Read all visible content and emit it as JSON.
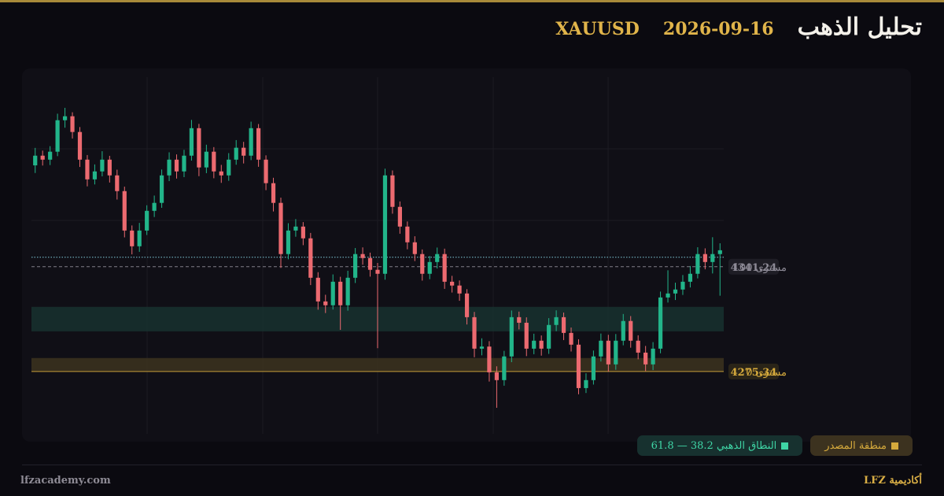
{
  "header": {
    "title": "تحليل الذهب",
    "date": "2026-09-16",
    "symbol": "XAUUSD"
  },
  "chart_data": {
    "type": "candlestick",
    "open": [
      4405.0,
      4411.1,
      4408.6,
      4413.6,
      4433.4,
      4435.9,
      4426.0,
      4408.6,
      4396.2,
      4401.2,
      4408.6,
      4398.7,
      4388.8,
      4364.0,
      4354.1,
      4364.0,
      4376.4,
      4381.4,
      4398.7,
      4408.6,
      4401.2,
      4411.1,
      4428.4,
      4403.7,
      4413.6,
      4401.2,
      4398.7,
      4408.6,
      4416.1,
      4411.1,
      4428.4,
      4408.6,
      4393.8,
      4381.4,
      4349.2,
      4364.0,
      4366.5,
      4359.1,
      4334.3,
      4319.4,
      4317.0,
      4331.8,
      4317.0,
      4334.3,
      4349.2,
      4346.7,
      4339.3,
      4336.8,
      4398.7,
      4378.9,
      4366.5,
      4356.6,
      4349.2,
      4336.8,
      4344.2,
      4349.2,
      4331.8,
      4329.4,
      4324.4,
      4309.5,
      4289.7,
      4291.0,
      4274.8,
      4269.9,
      4284.8,
      4309.5,
      4306.0,
      4289.7,
      4294.7,
      4289.7,
      4304.6,
      4309.5,
      4299.6,
      4292.2,
      4264.9,
      4269.9,
      4284.8,
      4294.7,
      4279.8,
      4294.7,
      4307.1,
      4294.7,
      4287.2,
      4279.8,
      4289.7,
      4321.9,
      4324.4,
      4326.9,
      4331.8,
      4336.8,
      4349.2,
      4344.2,
      4349.2
    ],
    "high": [
      4416.0,
      4414.3,
      4417.1,
      4437.5,
      4441.2,
      4438.4,
      4429.1,
      4411.5,
      4405.6,
      4413.9,
      4411.0,
      4402.3,
      4391.6,
      4367.2,
      4368.8,
      4379.9,
      4386.0,
      4402.4,
      4413.2,
      4411.9,
      4414.8,
      4433.6,
      4431.1,
      4418.0,
      4416.5,
      4405.3,
      4412.7,
      4420.9,
      4419.8,
      4432.5,
      4431.0,
      4411.3,
      4397.2,
      4384.7,
      4368.6,
      4371.2,
      4369.3,
      4362.5,
      4337.8,
      4323.6,
      4336.4,
      4334.9,
      4338.7,
      4353.0,
      4353.4,
      4350.1,
      4343.6,
      4402.9,
      4401.8,
      4382.3,
      4369.7,
      4360.4,
      4352.1,
      4348.0,
      4353.3,
      4352.6,
      4335.5,
      4332.6,
      4327.1,
      4312.8,
      4296.2,
      4294.4,
      4278.6,
      4288.3,
      4313.7,
      4313.0,
      4309.4,
      4299.1,
      4298.0,
      4308.9,
      4313.8,
      4312.4,
      4303.0,
      4295.6,
      4274.2,
      4288.5,
      4299.2,
      4298.4,
      4298.9,
      4311.5,
      4310.2,
      4298.1,
      4291.4,
      4293.8,
      4325.6,
      4339.0,
      4331.2,
      4336.0,
      4341.7,
      4353.5,
      4352.8,
      4359.8,
      4356.0
    ],
    "low": [
      4400.2,
      4404.9,
      4405.2,
      4410.8,
      4428.7,
      4421.9,
      4404.0,
      4391.8,
      4393.0,
      4398.1,
      4394.2,
      4383.5,
      4359.7,
      4349.0,
      4350.6,
      4361.2,
      4372.5,
      4378.3,
      4395.1,
      4396.7,
      4397.6,
      4408.0,
      4398.2,
      4400.1,
      4396.9,
      4394.0,
      4395.3,
      4405.4,
      4406.2,
      4408.3,
      4404.1,
      4389.4,
      4376.0,
      4340.5,
      4345.9,
      4360.1,
      4354.8,
      4329.7,
      4314.2,
      4312.1,
      4314.3,
      4301.5,
      4313.6,
      4331.0,
      4342.5,
      4335.0,
      4290.0,
      4333.1,
      4374.6,
      4362.0,
      4352.2,
      4344.8,
      4332.5,
      4333.4,
      4340.1,
      4327.3,
      4325.0,
      4319.8,
      4304.9,
      4284.3,
      4285.5,
      4269.0,
      4252.5,
      4266.4,
      4281.2,
      4301.8,
      4285.0,
      4286.2,
      4285.3,
      4286.4,
      4300.7,
      4295.1,
      4287.9,
      4261.0,
      4261.8,
      4267.1,
      4281.6,
      4275.3,
      4276.4,
      4291.8,
      4290.3,
      4283.0,
      4275.6,
      4276.2,
      4286.8,
      4318.7,
      4320.3,
      4323.5,
      4328.2,
      4333.9,
      4339.6,
      4337.0,
      4323.0
    ],
    "close": [
      4411.1,
      4408.6,
      4413.6,
      4433.4,
      4435.9,
      4426.0,
      4408.6,
      4396.2,
      4401.2,
      4408.6,
      4398.7,
      4388.8,
      4364.0,
      4354.1,
      4364.0,
      4376.4,
      4381.4,
      4398.7,
      4408.6,
      4401.2,
      4411.1,
      4428.4,
      4403.7,
      4413.6,
      4401.2,
      4398.7,
      4408.6,
      4416.1,
      4411.1,
      4428.4,
      4408.6,
      4393.8,
      4381.4,
      4349.2,
      4364.0,
      4366.5,
      4359.1,
      4334.3,
      4319.4,
      4317.0,
      4331.8,
      4317.0,
      4334.3,
      4349.2,
      4346.7,
      4339.3,
      4336.8,
      4398.7,
      4378.9,
      4366.5,
      4356.6,
      4349.2,
      4336.8,
      4344.2,
      4349.2,
      4331.8,
      4329.4,
      4324.4,
      4309.5,
      4289.7,
      4291.0,
      4274.8,
      4269.9,
      4284.8,
      4309.5,
      4306.0,
      4289.7,
      4294.7,
      4289.7,
      4304.6,
      4309.5,
      4299.6,
      4292.2,
      4264.9,
      4269.9,
      4284.8,
      4294.7,
      4279.8,
      4294.7,
      4307.1,
      4294.7,
      4287.2,
      4279.8,
      4289.7,
      4321.9,
      4324.4,
      4326.9,
      4331.8,
      4336.8,
      4349.2,
      4344.2,
      4349.2,
      4351.6
    ],
    "up_color": "#22b58a",
    "down_color": "#ec6a70",
    "ylim": [
      4250,
      4460
    ],
    "price_line": 4347.2,
    "levels": [
      {
        "label": "مستوى 100",
        "value": 4341.24,
        "color": "#8d8a96",
        "style": "dashed"
      },
      {
        "label": "مستوى 0",
        "value": 4275.34,
        "color": "#d6aa3c",
        "style": "solid"
      }
    ],
    "zones": [
      {
        "name": "منطقة المصدر",
        "range": [
          4275.34,
          4283.8
        ],
        "color": "#3c321f",
        "swatch": "#d6aa3c"
      },
      {
        "name": "النطاق الذهبي 38.2 — 61.8",
        "range": [
          4300.6,
          4316.0
        ],
        "color": "#17312f",
        "swatch": "#3fd6a6"
      }
    ]
  },
  "footer": {
    "site": "lfzacademy.com",
    "brand": "أكاديمية LFZ"
  }
}
